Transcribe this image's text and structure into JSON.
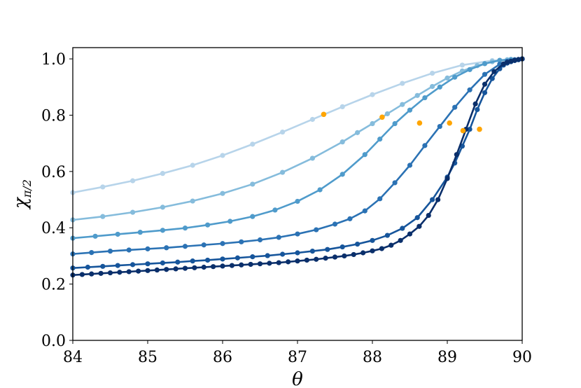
{
  "chart_data": {
    "type": "line",
    "title": "",
    "xlabel": "θ",
    "ylabel": "χπ/2",
    "ylabel_main": "χ",
    "ylabel_sub": "π/2",
    "xlim": [
      84,
      90
    ],
    "ylim": [
      0.0,
      1.04
    ],
    "xticks": [
      84,
      85,
      86,
      87,
      88,
      89,
      90
    ],
    "xtick_labels": [
      "84",
      "85",
      "86",
      "87",
      "88",
      "89",
      "90"
    ],
    "yticks": [
      0.0,
      0.2,
      0.4,
      0.6,
      0.8,
      1.0
    ],
    "ytick_labels": [
      "0.0",
      "0.2",
      "0.4",
      "0.6",
      "0.8",
      "1.0"
    ],
    "grid": false,
    "legend": "none",
    "series": [
      {
        "color": "#b7d4ea",
        "x": [
          84.0,
          84.4,
          84.8,
          85.2,
          85.6,
          86.0,
          86.4,
          86.8,
          87.2,
          87.6,
          88.0,
          88.4,
          88.8,
          89.2,
          89.6,
          90.0
        ],
        "y": [
          0.525,
          0.545,
          0.567,
          0.593,
          0.622,
          0.657,
          0.697,
          0.74,
          0.785,
          0.83,
          0.873,
          0.913,
          0.949,
          0.978,
          0.994,
          1.0
        ]
      },
      {
        "color": "#85bcdc",
        "x": [
          84.0,
          84.4,
          84.8,
          85.2,
          85.6,
          86.0,
          86.4,
          86.8,
          87.2,
          87.6,
          87.8,
          88.0,
          88.2,
          88.4,
          88.6,
          88.8,
          89.0,
          89.2,
          89.4,
          89.6,
          89.8,
          90.0
        ],
        "y": [
          0.428,
          0.44,
          0.455,
          0.473,
          0.495,
          0.522,
          0.555,
          0.597,
          0.647,
          0.705,
          0.738,
          0.77,
          0.805,
          0.838,
          0.87,
          0.902,
          0.932,
          0.957,
          0.976,
          0.99,
          0.997,
          1.0
        ]
      },
      {
        "color": "#4f9bcb",
        "x": [
          84.0,
          84.3,
          84.6,
          84.9,
          85.2,
          85.5,
          85.8,
          86.1,
          86.4,
          86.7,
          87.0,
          87.3,
          87.6,
          87.9,
          88.1,
          88.3,
          88.5,
          88.7,
          88.9,
          89.1,
          89.3,
          89.5,
          89.7,
          89.85,
          90.0
        ],
        "y": [
          0.363,
          0.37,
          0.377,
          0.384,
          0.391,
          0.399,
          0.41,
          0.423,
          0.44,
          0.463,
          0.494,
          0.535,
          0.59,
          0.66,
          0.715,
          0.77,
          0.818,
          0.862,
          0.9,
          0.935,
          0.962,
          0.983,
          0.995,
          0.998,
          1.0
        ]
      },
      {
        "color": "#2b72b4",
        "x": [
          84.0,
          84.25,
          84.5,
          84.75,
          85.0,
          85.25,
          85.5,
          85.75,
          86.0,
          86.25,
          86.5,
          86.75,
          87.0,
          87.25,
          87.5,
          87.7,
          87.9,
          88.1,
          88.3,
          88.5,
          88.7,
          88.9,
          89.1,
          89.3,
          89.5,
          89.7,
          89.8,
          89.9,
          90.0
        ],
        "y": [
          0.307,
          0.312,
          0.317,
          0.321,
          0.325,
          0.329,
          0.334,
          0.339,
          0.344,
          0.35,
          0.357,
          0.366,
          0.378,
          0.393,
          0.413,
          0.432,
          0.46,
          0.503,
          0.56,
          0.622,
          0.692,
          0.76,
          0.828,
          0.89,
          0.945,
          0.981,
          0.992,
          0.997,
          1.0
        ]
      },
      {
        "color": "#16559b",
        "x": [
          84.0,
          84.2,
          84.4,
          84.6,
          84.8,
          85.0,
          85.2,
          85.4,
          85.6,
          85.8,
          86.0,
          86.2,
          86.4,
          86.6,
          86.8,
          87.0,
          87.2,
          87.4,
          87.6,
          87.8,
          88.0,
          88.2,
          88.4,
          88.6,
          88.8,
          89.0,
          89.1,
          89.2,
          89.3,
          89.4,
          89.5,
          89.6,
          89.7,
          89.75,
          89.8,
          89.85,
          89.9,
          89.95,
          90.0
        ],
        "y": [
          0.257,
          0.26,
          0.263,
          0.266,
          0.269,
          0.272,
          0.275,
          0.278,
          0.282,
          0.285,
          0.289,
          0.293,
          0.297,
          0.301,
          0.306,
          0.311,
          0.317,
          0.323,
          0.332,
          0.342,
          0.355,
          0.373,
          0.398,
          0.436,
          0.5,
          0.58,
          0.63,
          0.69,
          0.75,
          0.82,
          0.88,
          0.93,
          0.965,
          0.978,
          0.985,
          0.99,
          0.994,
          0.997,
          1.0
        ]
      },
      {
        "color": "#0a2f6b",
        "x": [
          84.0,
          84.125,
          84.25,
          84.375,
          84.5,
          84.625,
          84.75,
          84.875,
          85.0,
          85.125,
          85.25,
          85.375,
          85.5,
          85.625,
          85.75,
          85.875,
          86.0,
          86.125,
          86.25,
          86.375,
          86.5,
          86.625,
          86.75,
          86.875,
          87.0,
          87.125,
          87.25,
          87.375,
          87.5,
          87.625,
          87.75,
          87.875,
          88.0,
          88.125,
          88.25,
          88.375,
          88.5,
          88.625,
          88.75,
          88.875,
          89.0,
          89.125,
          89.25,
          89.375,
          89.5,
          89.625,
          89.75,
          89.8,
          89.85,
          89.9,
          89.95,
          90.0
        ],
        "y": [
          0.232,
          0.234,
          0.236,
          0.238,
          0.24,
          0.242,
          0.244,
          0.246,
          0.248,
          0.25,
          0.252,
          0.254,
          0.256,
          0.258,
          0.26,
          0.262,
          0.264,
          0.266,
          0.268,
          0.27,
          0.272,
          0.274,
          0.276,
          0.279,
          0.282,
          0.285,
          0.288,
          0.292,
          0.296,
          0.3,
          0.305,
          0.311,
          0.318,
          0.326,
          0.338,
          0.355,
          0.378,
          0.405,
          0.444,
          0.5,
          0.575,
          0.66,
          0.75,
          0.84,
          0.91,
          0.955,
          0.982,
          0.988,
          0.992,
          0.995,
          0.998,
          1.0
        ]
      }
    ],
    "highlight_points": {
      "color": "#ffa500",
      "x": [
        87.35,
        88.13,
        88.63,
        89.03,
        89.21,
        89.43
      ],
      "y": [
        0.803,
        0.793,
        0.772,
        0.772,
        0.745,
        0.75
      ]
    }
  }
}
